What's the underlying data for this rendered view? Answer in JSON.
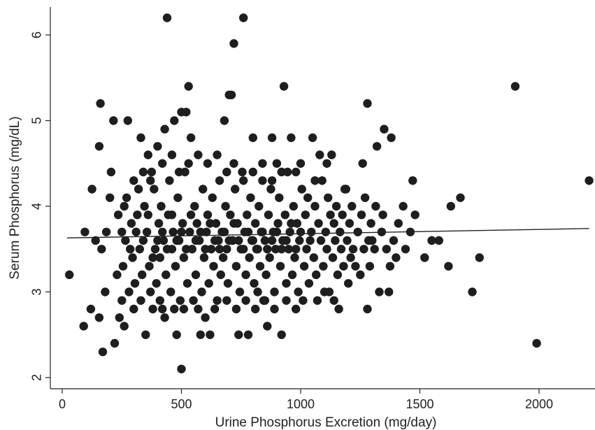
{
  "chart_data": {
    "type": "scatter",
    "xlabel": "Urine Phosphorus Excretion (mg/day)",
    "ylabel": "Serum Phosphorus (mg/dL)",
    "xlim": [
      -20,
      2220
    ],
    "ylim": [
      1.95,
      6.35
    ],
    "xticks": [
      0,
      500,
      1000,
      1500,
      2000
    ],
    "yticks": [
      2,
      3,
      4,
      5,
      6
    ],
    "xtick_labels": [
      "0",
      "500",
      "1000",
      "1500",
      "2000"
    ],
    "ytick_labels": [
      "2",
      "3",
      "4",
      "5",
      "6"
    ],
    "grid": false,
    "legend": "none",
    "colors": {
      "points": "#1e1e1e",
      "line": "#222222",
      "axis": "#222222"
    },
    "fit_line": {
      "x": [
        20,
        2210
      ],
      "y": [
        3.63,
        3.74
      ]
    },
    "points": [
      [
        30,
        3.2
      ],
      [
        90,
        2.6
      ],
      [
        95,
        3.7
      ],
      [
        120,
        2.8
      ],
      [
        125,
        4.2
      ],
      [
        140,
        3.6
      ],
      [
        155,
        2.7
      ],
      [
        155,
        4.7
      ],
      [
        160,
        5.2
      ],
      [
        165,
        3.5
      ],
      [
        170,
        2.3
      ],
      [
        180,
        3.0
      ],
      [
        185,
        3.7
      ],
      [
        200,
        4.1
      ],
      [
        205,
        4.4
      ],
      [
        215,
        5.0
      ],
      [
        220,
        2.4
      ],
      [
        240,
        2.7
      ],
      [
        250,
        2.9
      ],
      [
        260,
        2.6
      ],
      [
        275,
        5.0
      ],
      [
        290,
        3.8
      ],
      [
        300,
        4.3
      ],
      [
        330,
        4.8
      ],
      [
        350,
        2.5
      ],
      [
        360,
        4.6
      ],
      [
        375,
        4.4
      ],
      [
        400,
        4.7
      ],
      [
        420,
        2.8
      ],
      [
        430,
        4.9
      ],
      [
        440,
        6.2
      ],
      [
        470,
        5.0
      ],
      [
        480,
        2.5
      ],
      [
        500,
        5.1
      ],
      [
        500,
        2.1
      ],
      [
        520,
        5.1
      ],
      [
        530,
        5.4
      ],
      [
        540,
        4.8
      ],
      [
        550,
        2.9
      ],
      [
        580,
        2.5
      ],
      [
        620,
        2.5
      ],
      [
        680,
        5.0
      ],
      [
        700,
        5.3
      ],
      [
        710,
        5.3
      ],
      [
        720,
        5.9
      ],
      [
        740,
        2.5
      ],
      [
        760,
        6.2
      ],
      [
        780,
        2.5
      ],
      [
        800,
        4.8
      ],
      [
        820,
        3.0
      ],
      [
        860,
        2.6
      ],
      [
        880,
        4.8
      ],
      [
        900,
        4.5
      ],
      [
        920,
        2.5
      ],
      [
        930,
        5.4
      ],
      [
        960,
        4.8
      ],
      [
        1010,
        2.9
      ],
      [
        1050,
        4.8
      ],
      [
        1080,
        4.6
      ],
      [
        1100,
        3.0
      ],
      [
        1130,
        4.6
      ],
      [
        1160,
        2.8
      ],
      [
        1190,
        4.2
      ],
      [
        1230,
        3.3
      ],
      [
        1260,
        4.5
      ],
      [
        1280,
        5.2
      ],
      [
        1280,
        2.8
      ],
      [
        1300,
        3.6
      ],
      [
        1320,
        4.7
      ],
      [
        1330,
        3.0
      ],
      [
        1350,
        4.9
      ],
      [
        1370,
        3.0
      ],
      [
        1380,
        4.8
      ],
      [
        1400,
        3.4
      ],
      [
        1430,
        4.0
      ],
      [
        1470,
        4.3
      ],
      [
        1520,
        3.4
      ],
      [
        1550,
        3.6
      ],
      [
        1580,
        3.6
      ],
      [
        1620,
        3.3
      ],
      [
        1630,
        4.0
      ],
      [
        1670,
        4.1
      ],
      [
        1720,
        3.0
      ],
      [
        1750,
        3.4
      ],
      [
        1900,
        5.4
      ],
      [
        1990,
        2.4
      ],
      [
        2210,
        4.3
      ],
      [
        230,
        3.2
      ],
      [
        235,
        3.9
      ],
      [
        255,
        3.3
      ],
      [
        265,
        3.6
      ],
      [
        270,
        4.1
      ],
      [
        280,
        3.0
      ],
      [
        295,
        3.4
      ],
      [
        305,
        3.1
      ],
      [
        315,
        3.9
      ],
      [
        325,
        3.5
      ],
      [
        335,
        3.2
      ],
      [
        345,
        4.0
      ],
      [
        355,
        3.7
      ],
      [
        365,
        3.3
      ],
      [
        370,
        3.0
      ],
      [
        385,
        4.2
      ],
      [
        390,
        3.5
      ],
      [
        395,
        3.1
      ],
      [
        405,
        3.8
      ],
      [
        410,
        3.4
      ],
      [
        415,
        4.0
      ],
      [
        425,
        3.6
      ],
      [
        435,
        3.2
      ],
      [
        445,
        3.9
      ],
      [
        450,
        4.3
      ],
      [
        455,
        3.0
      ],
      [
        460,
        3.5
      ],
      [
        465,
        3.7
      ],
      [
        475,
        3.3
      ],
      [
        485,
        4.1
      ],
      [
        490,
        3.6
      ],
      [
        495,
        2.9
      ],
      [
        505,
        3.8
      ],
      [
        510,
        3.4
      ],
      [
        515,
        4.4
      ],
      [
        525,
        3.1
      ],
      [
        535,
        3.7
      ],
      [
        545,
        3.5
      ],
      [
        555,
        4.0
      ],
      [
        560,
        3.2
      ],
      [
        565,
        3.8
      ],
      [
        575,
        3.6
      ],
      [
        585,
        3.0
      ],
      [
        590,
        4.2
      ],
      [
        595,
        3.4
      ],
      [
        605,
        3.7
      ],
      [
        610,
        3.9
      ],
      [
        615,
        3.1
      ],
      [
        625,
        3.5
      ],
      [
        630,
        4.1
      ],
      [
        635,
        3.3
      ],
      [
        645,
        3.8
      ],
      [
        650,
        2.9
      ],
      [
        655,
        3.6
      ],
      [
        660,
        4.3
      ],
      [
        665,
        3.2
      ],
      [
        670,
        3.7
      ],
      [
        675,
        3.4
      ],
      [
        685,
        4.0
      ],
      [
        690,
        3.5
      ],
      [
        695,
        3.1
      ],
      [
        705,
        3.9
      ],
      [
        715,
        3.6
      ],
      [
        725,
        4.2
      ],
      [
        730,
        3.3
      ],
      [
        735,
        3.8
      ],
      [
        745,
        3.0
      ],
      [
        750,
        3.5
      ],
      [
        755,
        4.4
      ],
      [
        765,
        3.7
      ],
      [
        770,
        3.2
      ],
      [
        775,
        3.9
      ],
      [
        785,
        3.4
      ],
      [
        790,
        4.1
      ],
      [
        795,
        3.6
      ],
      [
        805,
        3.1
      ],
      [
        810,
        3.8
      ],
      [
        815,
        3.5
      ],
      [
        825,
        4.0
      ],
      [
        830,
        3.3
      ],
      [
        835,
        3.7
      ],
      [
        840,
        4.3
      ],
      [
        845,
        2.9
      ],
      [
        850,
        3.6
      ],
      [
        855,
        3.2
      ],
      [
        865,
        3.9
      ],
      [
        870,
        3.4
      ],
      [
        875,
        4.2
      ],
      [
        885,
        3.7
      ],
      [
        890,
        3.0
      ],
      [
        895,
        3.5
      ],
      [
        905,
        3.8
      ],
      [
        910,
        4.1
      ],
      [
        915,
        3.3
      ],
      [
        925,
        3.6
      ],
      [
        935,
        3.9
      ],
      [
        940,
        3.1
      ],
      [
        945,
        4.4
      ],
      [
        950,
        3.5
      ],
      [
        955,
        3.7
      ],
      [
        965,
        3.2
      ],
      [
        970,
        4.0
      ],
      [
        975,
        3.4
      ],
      [
        985,
        3.8
      ],
      [
        990,
        3.0
      ],
      [
        995,
        3.6
      ],
      [
        1005,
        4.2
      ],
      [
        1015,
        3.3
      ],
      [
        1020,
        3.9
      ],
      [
        1025,
        3.5
      ],
      [
        1030,
        4.1
      ],
      [
        1035,
        3.1
      ],
      [
        1045,
        3.7
      ],
      [
        1055,
        3.4
      ],
      [
        1060,
        4.0
      ],
      [
        1065,
        3.2
      ],
      [
        1075,
        3.8
      ],
      [
        1085,
        3.6
      ],
      [
        1090,
        4.3
      ],
      [
        1095,
        3.3
      ],
      [
        1105,
        3.7
      ],
      [
        1110,
        3.5
      ],
      [
        1115,
        4.1
      ],
      [
        1120,
        3.0
      ],
      [
        1125,
        3.9
      ],
      [
        1135,
        3.4
      ],
      [
        1140,
        3.8
      ],
      [
        1145,
        3.6
      ],
      [
        1150,
        4.0
      ],
      [
        1155,
        3.2
      ],
      [
        1165,
        3.7
      ],
      [
        1170,
        3.5
      ],
      [
        1175,
        3.9
      ],
      [
        1180,
        3.3
      ],
      [
        1185,
        4.2
      ],
      [
        1195,
        3.6
      ],
      [
        1200,
        3.1
      ],
      [
        1205,
        3.8
      ],
      [
        1210,
        3.4
      ],
      [
        1215,
        4.0
      ],
      [
        1220,
        3.5
      ],
      [
        1240,
        3.7
      ],
      [
        1250,
        3.2
      ],
      [
        1255,
        3.9
      ],
      [
        1265,
        3.5
      ],
      [
        1270,
        4.1
      ],
      [
        1285,
        3.6
      ],
      [
        1290,
        3.3
      ],
      [
        1295,
        3.8
      ],
      [
        1310,
        3.5
      ],
      [
        1315,
        4.0
      ],
      [
        1340,
        3.7
      ],
      [
        1345,
        3.9
      ],
      [
        1360,
        3.5
      ],
      [
        1375,
        3.3
      ],
      [
        1390,
        3.6
      ],
      [
        1410,
        3.8
      ],
      [
        1440,
        3.5
      ],
      [
        1460,
        3.7
      ],
      [
        1480,
        3.9
      ],
      [
        250,
        3.7
      ],
      [
        260,
        4.0
      ],
      [
        285,
        3.5
      ],
      [
        310,
        3.7
      ],
      [
        320,
        4.2
      ],
      [
        340,
        3.6
      ],
      [
        360,
        3.9
      ],
      [
        380,
        3.4
      ],
      [
        400,
        3.6
      ],
      [
        420,
        3.7
      ],
      [
        440,
        3.5
      ],
      [
        460,
        3.9
      ],
      [
        480,
        3.6
      ],
      [
        500,
        3.7
      ],
      [
        520,
        3.5
      ],
      [
        540,
        3.9
      ],
      [
        560,
        3.6
      ],
      [
        580,
        3.7
      ],
      [
        600,
        3.5
      ],
      [
        620,
        3.8
      ],
      [
        640,
        3.6
      ],
      [
        660,
        3.5
      ],
      [
        680,
        3.7
      ],
      [
        700,
        3.6
      ],
      [
        720,
        3.8
      ],
      [
        740,
        3.6
      ],
      [
        760,
        3.5
      ],
      [
        780,
        3.7
      ],
      [
        800,
        3.6
      ],
      [
        820,
        3.5
      ],
      [
        840,
        3.7
      ],
      [
        860,
        3.5
      ],
      [
        880,
        3.6
      ],
      [
        900,
        3.7
      ],
      [
        920,
        3.5
      ],
      [
        940,
        3.6
      ],
      [
        960,
        3.8
      ],
      [
        980,
        3.5
      ],
      [
        1000,
        3.7
      ],
      [
        1040,
        3.6
      ],
      [
        300,
        2.8
      ],
      [
        330,
        2.9
      ],
      [
        380,
        2.8
      ],
      [
        410,
        2.9
      ],
      [
        430,
        2.7
      ],
      [
        470,
        2.8
      ],
      [
        510,
        2.8
      ],
      [
        570,
        2.8
      ],
      [
        600,
        2.7
      ],
      [
        640,
        2.8
      ],
      [
        690,
        2.9
      ],
      [
        730,
        2.8
      ],
      [
        770,
        2.9
      ],
      [
        810,
        2.8
      ],
      [
        850,
        2.9
      ],
      [
        890,
        2.8
      ],
      [
        940,
        2.9
      ],
      [
        980,
        2.8
      ],
      [
        1070,
        2.9
      ],
      [
        1140,
        2.9
      ],
      [
        340,
        4.4
      ],
      [
        370,
        4.3
      ],
      [
        420,
        4.5
      ],
      [
        460,
        4.6
      ],
      [
        490,
        4.4
      ],
      [
        530,
        4.5
      ],
      [
        570,
        4.6
      ],
      [
        610,
        4.5
      ],
      [
        650,
        4.6
      ],
      [
        690,
        4.4
      ],
      [
        720,
        4.5
      ],
      [
        760,
        4.3
      ],
      [
        800,
        4.4
      ],
      [
        840,
        4.5
      ],
      [
        880,
        4.3
      ],
      [
        920,
        4.4
      ],
      [
        980,
        4.4
      ],
      [
        1000,
        4.5
      ],
      [
        1060,
        4.3
      ],
      [
        1110,
        4.5
      ]
    ]
  }
}
